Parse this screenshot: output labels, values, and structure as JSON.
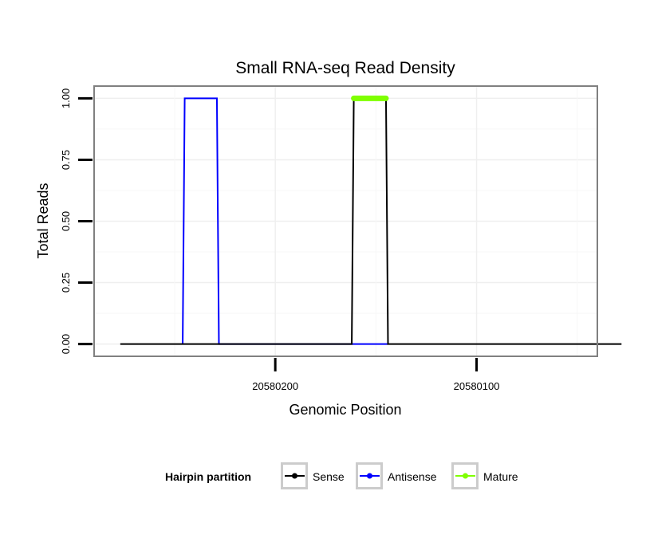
{
  "chart_data": {
    "type": "line",
    "title": "Small RNA-seq Read Density",
    "xlabel": "Genomic Position",
    "ylabel": "Total Reads",
    "x_reversed": true,
    "xlim": [
      20580040,
      20580290
    ],
    "ylim": [
      -0.05,
      1.05
    ],
    "x_ticks": [
      {
        "value": 20580200,
        "label": "20580200"
      },
      {
        "value": 20580100,
        "label": "20580100"
      }
    ],
    "y_ticks": [
      {
        "value": 0.0,
        "label": "0.00"
      },
      {
        "value": 0.25,
        "label": "0.25"
      },
      {
        "value": 0.5,
        "label": "0.50"
      },
      {
        "value": 0.75,
        "label": "0.75"
      },
      {
        "value": 1.0,
        "label": "1.00"
      }
    ],
    "grid": true,
    "legend": {
      "title": "Hairpin partition",
      "position": "bottom",
      "entries": [
        "Sense",
        "Antisense",
        "Mature"
      ]
    },
    "series": [
      {
        "name": "Sense",
        "color": "#000000",
        "x": [
          20580277,
          20580162,
          20580161,
          20580145,
          20580144,
          20580028
        ],
        "y": [
          0,
          0,
          1,
          1,
          0,
          0
        ]
      },
      {
        "name": "Antisense",
        "color": "#0000ff",
        "x": [
          20580246,
          20580245,
          20580229,
          20580228,
          20580162,
          20580144
        ],
        "y": [
          0,
          1,
          1,
          0,
          0,
          0
        ]
      },
      {
        "name": "Mature",
        "color": "#7fff00",
        "x": [
          20580161,
          20580145
        ],
        "y": [
          1,
          1
        ]
      }
    ]
  }
}
